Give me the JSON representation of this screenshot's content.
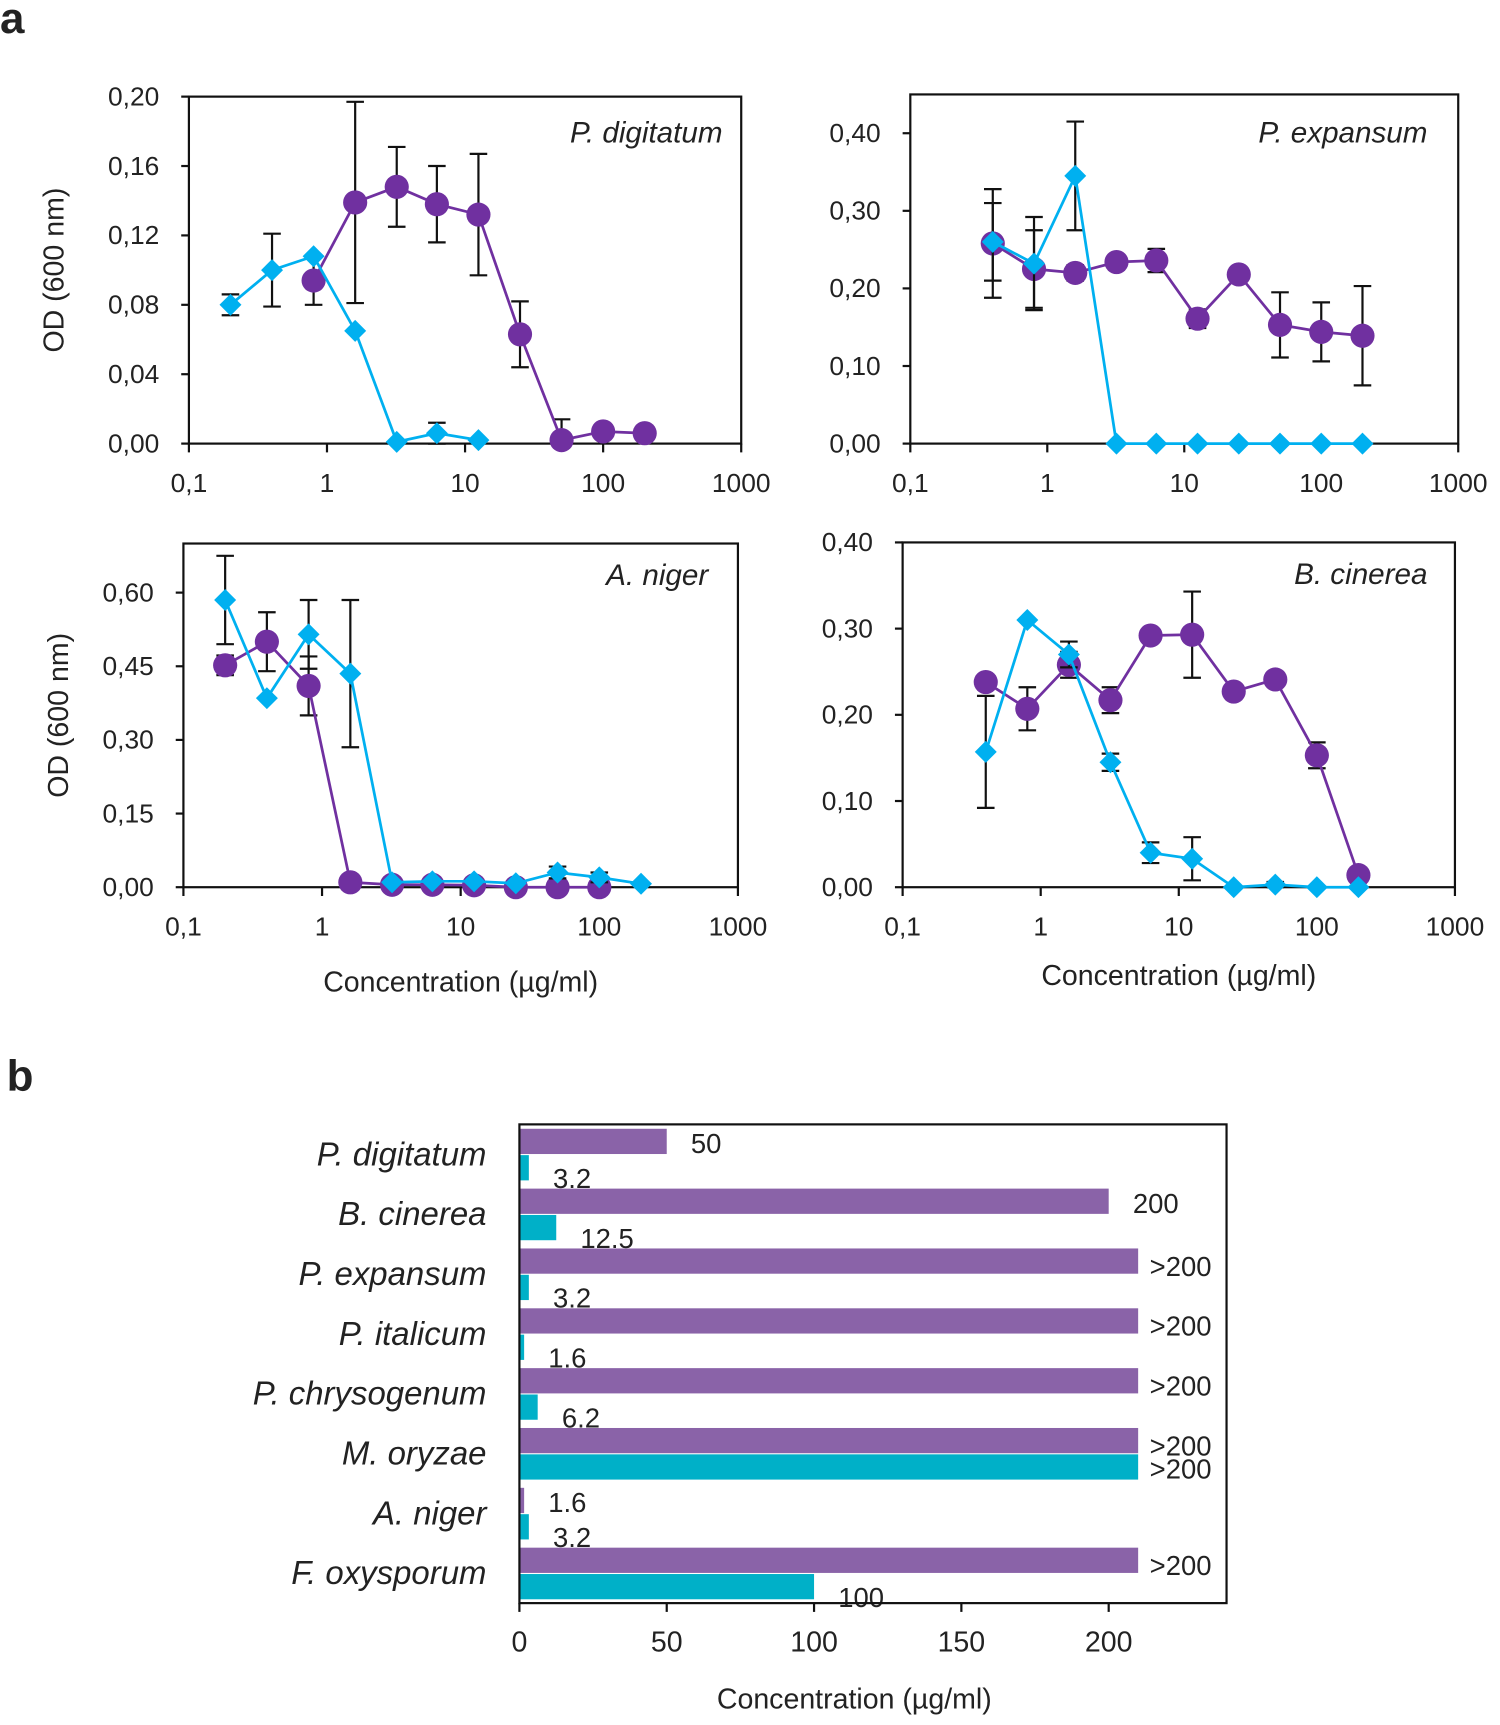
{
  "colors": {
    "series_a": "#7030a0",
    "series_b": "#00b0f0",
    "bar_a": "#8a63a8",
    "bar_b": "#00b0c8",
    "axis": "#111111"
  },
  "panel_letters": [
    "a",
    "b"
  ],
  "chart_data": [
    {
      "type": "line",
      "title": "P. digitatum",
      "xscale": "log",
      "xlim": [
        0.1,
        1000
      ],
      "ylim": [
        0,
        0.2
      ],
      "xticks": [
        0.1,
        1,
        10,
        100,
        1000
      ],
      "xtick_labels": [
        "0,1",
        "1",
        "10",
        "100",
        "1000"
      ],
      "yticks": [
        0,
        0.04,
        0.08,
        0.12,
        0.16,
        0.2
      ],
      "ytick_labels": [
        "0,00",
        "0,04",
        "0,08",
        "0,12",
        "0,16",
        "0,20"
      ],
      "xlabel": "",
      "ylabel": "OD (600 nm)",
      "grid": false,
      "series": [
        {
          "marker": "circle",
          "color": "#7030a0",
          "x": [
            0.8,
            1.6,
            3.2,
            6.25,
            12.5,
            25,
            50,
            100,
            200
          ],
          "y": [
            0.094,
            0.139,
            0.148,
            0.138,
            0.132,
            0.063,
            0.002,
            0.007,
            0.006
          ],
          "err": [
            0.014,
            0.058,
            0.023,
            0.022,
            0.035,
            0.019,
            0.012,
            0,
            0
          ]
        },
        {
          "marker": "diamond",
          "color": "#00b0f0",
          "x": [
            0.2,
            0.4,
            0.8,
            1.6,
            3.2,
            6.25,
            12.5
          ],
          "y": [
            0.08,
            0.1,
            0.108,
            0.065,
            0.001,
            0.006,
            0.002
          ],
          "err": [
            0.006,
            0.021,
            0,
            0,
            0,
            0.006,
            0
          ]
        }
      ]
    },
    {
      "type": "line",
      "title": "P. expansum",
      "xscale": "log",
      "xlim": [
        0.1,
        1000
      ],
      "ylim": [
        0,
        0.45
      ],
      "xticks": [
        0.1,
        1,
        10,
        100,
        1000
      ],
      "xtick_labels": [
        "0,1",
        "1",
        "10",
        "100",
        "1000"
      ],
      "yticks": [
        0,
        0.1,
        0.2,
        0.3,
        0.4
      ],
      "ytick_labels": [
        "0,00",
        "0,10",
        "0,20",
        "0,30",
        "0,40"
      ],
      "xlabel": "",
      "ylabel": "",
      "grid": false,
      "series": [
        {
          "marker": "circle",
          "color": "#7030a0",
          "x": [
            0.4,
            0.8,
            1.6,
            3.2,
            6.25,
            12.5,
            25,
            50,
            100,
            200
          ],
          "y": [
            0.258,
            0.225,
            0.22,
            0.234,
            0.236,
            0.161,
            0.218,
            0.153,
            0.144,
            0.139
          ],
          "err": [
            0.07,
            0.05,
            0.01,
            0,
            0.015,
            0.012,
            0,
            0.042,
            0.038,
            0.064
          ]
        },
        {
          "marker": "diamond",
          "color": "#00b0f0",
          "x": [
            0.4,
            0.8,
            1.6,
            3.2,
            6.25,
            12.5,
            25,
            50,
            100,
            200
          ],
          "y": [
            0.26,
            0.232,
            0.345,
            0,
            0,
            0,
            0,
            0,
            0,
            0
          ],
          "err": [
            0.05,
            0.06,
            0.07,
            0,
            0,
            0,
            0,
            0,
            0,
            0
          ]
        }
      ]
    },
    {
      "type": "line",
      "title": "A. niger",
      "xscale": "log",
      "xlim": [
        0.1,
        1000
      ],
      "ylim": [
        0,
        0.7
      ],
      "xticks": [
        0.1,
        1,
        10,
        100,
        1000
      ],
      "xtick_labels": [
        "0,1",
        "1",
        "10",
        "100",
        "1000"
      ],
      "yticks": [
        0,
        0.15,
        0.3,
        0.45,
        0.6
      ],
      "ytick_labels": [
        "0,00",
        "0,15",
        "0,30",
        "0,45",
        "0,60"
      ],
      "xlabel": "Concentration (µg/ml)",
      "ylabel": "OD (600 nm)",
      "grid": false,
      "series": [
        {
          "marker": "circle",
          "color": "#7030a0",
          "x": [
            0.2,
            0.4,
            0.8,
            1.6,
            3.2,
            6.25,
            12.5,
            25,
            50,
            100
          ],
          "y": [
            0.452,
            0.5,
            0.41,
            0.01,
            0.005,
            0.005,
            0.004,
            0,
            0,
            0
          ],
          "err": [
            0.02,
            0.06,
            0.06,
            0,
            0,
            0,
            0,
            0,
            0,
            0
          ]
        },
        {
          "marker": "diamond",
          "color": "#00b0f0",
          "x": [
            0.2,
            0.4,
            0.8,
            1.6,
            3.2,
            6.25,
            12.5,
            25,
            50,
            100,
            200
          ],
          "y": [
            0.585,
            0.385,
            0.515,
            0.435,
            0.01,
            0.012,
            0.012,
            0.008,
            0.03,
            0.02,
            0.007
          ],
          "err": [
            0.09,
            0,
            0.07,
            0.15,
            0,
            0,
            0,
            0,
            0.012,
            0.01,
            0
          ]
        }
      ]
    },
    {
      "type": "line",
      "title": "B. cinerea",
      "xscale": "log",
      "xlim": [
        0.1,
        1000
      ],
      "ylim": [
        0,
        0.4
      ],
      "xticks": [
        0.1,
        1,
        10,
        100,
        1000
      ],
      "xtick_labels": [
        "0,1",
        "1",
        "10",
        "100",
        "1000"
      ],
      "yticks": [
        0,
        0.1,
        0.2,
        0.3,
        0.4
      ],
      "ytick_labels": [
        "0,00",
        "0,10",
        "0,20",
        "0,30",
        "0,40"
      ],
      "xlabel": "Concentration (µg/ml)",
      "ylabel": "",
      "grid": false,
      "series": [
        {
          "marker": "circle",
          "color": "#7030a0",
          "x": [
            0.4,
            0.8,
            1.6,
            3.2,
            6.25,
            12.5,
            25,
            50,
            100,
            200
          ],
          "y": [
            0.238,
            0.207,
            0.258,
            0.217,
            0.292,
            0.293,
            0.227,
            0.241,
            0.153,
            0.014
          ],
          "err": [
            0,
            0.025,
            0.015,
            0.015,
            0,
            0.05,
            0,
            0,
            0.015,
            0
          ]
        },
        {
          "marker": "diamond",
          "color": "#00b0f0",
          "x": [
            0.4,
            0.8,
            1.6,
            3.2,
            6.25,
            12.5,
            25,
            50,
            100,
            200
          ],
          "y": [
            0.157,
            0.31,
            0.27,
            0.145,
            0.04,
            0.033,
            0,
            0.003,
            0,
            0
          ],
          "err": [
            0.065,
            0,
            0.015,
            0.01,
            0.012,
            0.025,
            0,
            0.003,
            0,
            0
          ]
        }
      ]
    },
    {
      "type": "bar",
      "orientation": "horizontal",
      "xlim": [
        0,
        240
      ],
      "xticks": [
        0,
        50,
        100,
        150,
        200
      ],
      "xtick_labels": [
        "0",
        "50",
        "100",
        "150",
        "200"
      ],
      "xlabel": "Concentration (µg/ml)",
      "ylabel": "",
      "grid": false,
      "categories": [
        "P. digitatum",
        "B. cinerea",
        "P. expansum",
        "P. italicum",
        "P. chrysogenum",
        "M. oryzae",
        "A. niger",
        "F. oxysporum"
      ],
      "series": [
        {
          "color": "#8a63a8",
          "values": [
            50,
            200,
            210,
            210,
            210,
            210,
            1.6,
            210
          ],
          "labels": [
            "50",
            "200",
            ">200",
            ">200",
            ">200",
            ">200",
            "1.6",
            ">200"
          ]
        },
        {
          "color": "#00b0c8",
          "values": [
            3.2,
            12.5,
            3.2,
            1.6,
            6.2,
            210,
            3.2,
            100
          ],
          "labels": [
            "3.2",
            "12.5",
            "3.2",
            "1.6",
            "6.2",
            ">200",
            "3.2",
            "100"
          ]
        }
      ]
    }
  ]
}
